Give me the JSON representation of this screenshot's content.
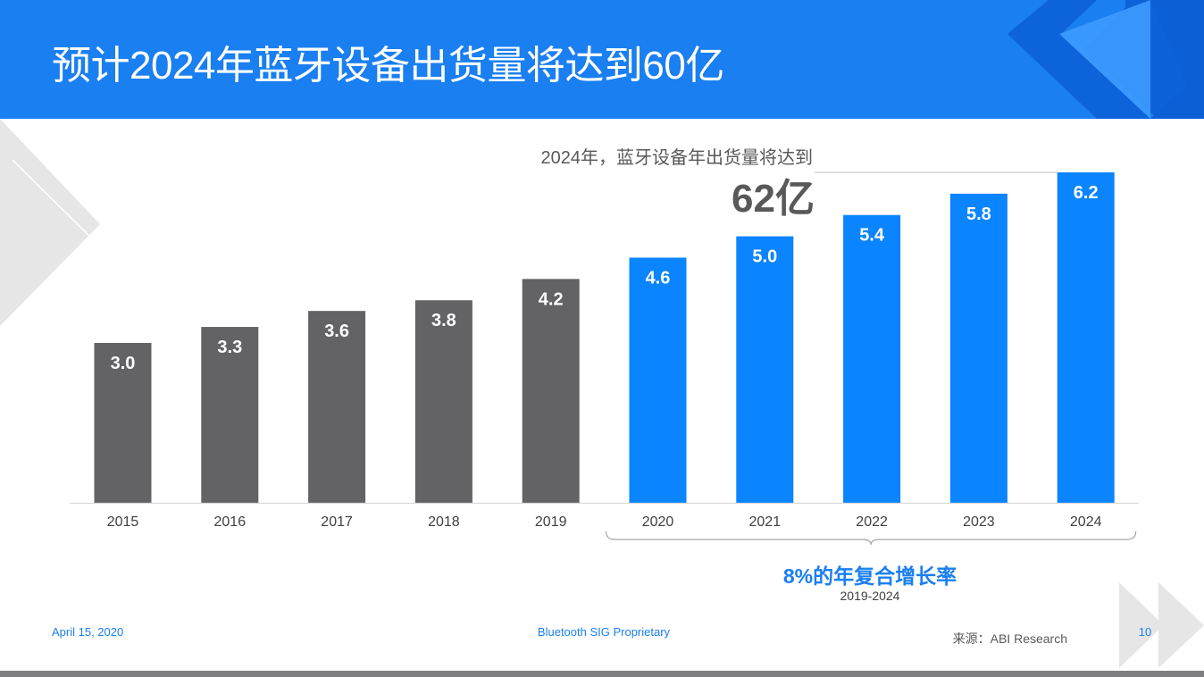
{
  "slide": {
    "title": "预计2024年蓝牙设备出货量将达到60亿",
    "callout_text": "2024年，蓝牙设备年出货量将达到",
    "callout_value": "62亿",
    "cagr_label": "8%的年复合增长率",
    "cagr_range": "2019-2024",
    "footer_date": "April 15, 2020",
    "footer_proprietary": "Bluetooth SIG Proprietary",
    "footer_source": "来源：ABI Research",
    "footer_page": "10"
  },
  "colors": {
    "header_blue": "#1a7ff0",
    "historical_bar": "#636366",
    "forecast_bar": "#0a84ff",
    "deco_dark_blue": "#0d5fd6",
    "deco_light_gray": "#e6e6e6"
  },
  "chart_data": {
    "type": "bar",
    "categories": [
      "2015",
      "2016",
      "2017",
      "2018",
      "2019",
      "2020",
      "2021",
      "2022",
      "2023",
      "2024"
    ],
    "values": [
      3.0,
      3.3,
      3.6,
      3.8,
      4.2,
      4.6,
      5.0,
      5.4,
      5.8,
      6.2
    ],
    "data_labels": [
      "3.0",
      "3.3",
      "3.6",
      "3.8",
      "4.2",
      "4.6",
      "5.0",
      "5.4",
      "5.8",
      "6.2"
    ],
    "forecast_from_index": 5,
    "title": "",
    "xlabel": "",
    "ylabel": "",
    "ylim": [
      0,
      6.2
    ],
    "grid": false,
    "legend": "none"
  }
}
